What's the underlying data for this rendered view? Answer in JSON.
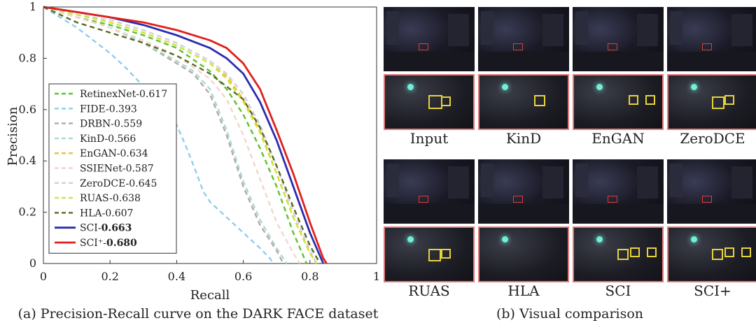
{
  "chart_data": {
    "type": "line",
    "title": "Precision-Recall curve on the DARK FACE dataset",
    "xlabel": "Recall",
    "ylabel": "Precision",
    "xlim": [
      0,
      1
    ],
    "ylim": [
      0,
      1
    ],
    "xticks": [
      "0",
      "0.2",
      "0.4",
      "0.6",
      "0.8",
      "1"
    ],
    "yticks": [
      "0",
      "0.2",
      "0.4",
      "0.6",
      "0.8",
      "1"
    ],
    "legend_position": "left-center",
    "series": [
      {
        "name": "RetinexNet",
        "score": "0.617",
        "color": "#5cc131",
        "dash": true,
        "bold": false,
        "points": [
          [
            0,
            1
          ],
          [
            0.1,
            0.96
          ],
          [
            0.2,
            0.93
          ],
          [
            0.3,
            0.89
          ],
          [
            0.4,
            0.84
          ],
          [
            0.5,
            0.75
          ],
          [
            0.55,
            0.68
          ],
          [
            0.6,
            0.58
          ],
          [
            0.65,
            0.45
          ],
          [
            0.7,
            0.3
          ],
          [
            0.75,
            0.12
          ],
          [
            0.79,
            0
          ]
        ]
      },
      {
        "name": "FIDE",
        "score": "0.393",
        "color": "#8fcdee",
        "dash": true,
        "bold": false,
        "points": [
          [
            0,
            1
          ],
          [
            0.05,
            0.96
          ],
          [
            0.1,
            0.92
          ],
          [
            0.15,
            0.87
          ],
          [
            0.2,
            0.82
          ],
          [
            0.25,
            0.76
          ],
          [
            0.3,
            0.69
          ],
          [
            0.35,
            0.62
          ],
          [
            0.4,
            0.54
          ],
          [
            0.43,
            0.45
          ],
          [
            0.46,
            0.35
          ],
          [
            0.48,
            0.28
          ],
          [
            0.5,
            0.24
          ],
          [
            0.55,
            0.18
          ],
          [
            0.6,
            0.12
          ],
          [
            0.65,
            0.06
          ],
          [
            0.68,
            0.02
          ],
          [
            0.69,
            0
          ]
        ]
      },
      {
        "name": "DRBN",
        "score": "0.559",
        "color": "#b6a99d",
        "dash": true,
        "bold": false,
        "points": [
          [
            0,
            1
          ],
          [
            0.1,
            0.96
          ],
          [
            0.2,
            0.92
          ],
          [
            0.3,
            0.86
          ],
          [
            0.4,
            0.78
          ],
          [
            0.45,
            0.74
          ],
          [
            0.5,
            0.66
          ],
          [
            0.55,
            0.5
          ],
          [
            0.6,
            0.3
          ],
          [
            0.65,
            0.15
          ],
          [
            0.7,
            0.05
          ],
          [
            0.72,
            0
          ]
        ]
      },
      {
        "name": "KinD",
        "score": "0.566",
        "color": "#a9d8d5",
        "dash": true,
        "bold": false,
        "points": [
          [
            0,
            1
          ],
          [
            0.1,
            0.96
          ],
          [
            0.2,
            0.92
          ],
          [
            0.3,
            0.86
          ],
          [
            0.4,
            0.79
          ],
          [
            0.45,
            0.75
          ],
          [
            0.5,
            0.68
          ],
          [
            0.55,
            0.52
          ],
          [
            0.6,
            0.32
          ],
          [
            0.65,
            0.17
          ],
          [
            0.7,
            0.06
          ],
          [
            0.73,
            0
          ]
        ]
      },
      {
        "name": "EnGAN",
        "score": "0.634",
        "color": "#f0c030",
        "dash": true,
        "bold": false,
        "points": [
          [
            0,
            1
          ],
          [
            0.1,
            0.97
          ],
          [
            0.2,
            0.94
          ],
          [
            0.3,
            0.9
          ],
          [
            0.4,
            0.85
          ],
          [
            0.5,
            0.78
          ],
          [
            0.55,
            0.73
          ],
          [
            0.6,
            0.64
          ],
          [
            0.65,
            0.52
          ],
          [
            0.7,
            0.35
          ],
          [
            0.75,
            0.18
          ],
          [
            0.8,
            0.04
          ],
          [
            0.82,
            0
          ]
        ]
      },
      {
        "name": "SSIENet",
        "score": "0.587",
        "color": "#f2d6cc",
        "dash": true,
        "bold": false,
        "points": [
          [
            0,
            1
          ],
          [
            0.1,
            0.96
          ],
          [
            0.2,
            0.92
          ],
          [
            0.3,
            0.87
          ],
          [
            0.4,
            0.81
          ],
          [
            0.5,
            0.72
          ],
          [
            0.55,
            0.64
          ],
          [
            0.6,
            0.5
          ],
          [
            0.65,
            0.33
          ],
          [
            0.7,
            0.16
          ],
          [
            0.75,
            0.04
          ],
          [
            0.77,
            0
          ]
        ]
      },
      {
        "name": "ZeroDCE",
        "score": "0.645",
        "color": "#cfcfe6",
        "dash": true,
        "bold": false,
        "points": [
          [
            0,
            1
          ],
          [
            0.1,
            0.97
          ],
          [
            0.2,
            0.95
          ],
          [
            0.3,
            0.91
          ],
          [
            0.4,
            0.86
          ],
          [
            0.5,
            0.79
          ],
          [
            0.55,
            0.74
          ],
          [
            0.6,
            0.66
          ],
          [
            0.65,
            0.54
          ],
          [
            0.7,
            0.38
          ],
          [
            0.75,
            0.2
          ],
          [
            0.8,
            0.05
          ],
          [
            0.82,
            0
          ]
        ]
      },
      {
        "name": "RUAS",
        "score": "0.638",
        "color": "#cde63a",
        "dash": true,
        "bold": false,
        "points": [
          [
            0,
            1
          ],
          [
            0.1,
            0.97
          ],
          [
            0.2,
            0.94
          ],
          [
            0.3,
            0.9
          ],
          [
            0.4,
            0.85
          ],
          [
            0.5,
            0.78
          ],
          [
            0.55,
            0.72
          ],
          [
            0.6,
            0.63
          ],
          [
            0.65,
            0.51
          ],
          [
            0.7,
            0.35
          ],
          [
            0.75,
            0.18
          ],
          [
            0.8,
            0.04
          ],
          [
            0.82,
            0
          ]
        ]
      },
      {
        "name": "HLA",
        "score": "0.607",
        "color": "#5a6a22",
        "dash": true,
        "bold": false,
        "points": [
          [
            0,
            1
          ],
          [
            0.05,
            0.97
          ],
          [
            0.1,
            0.94
          ],
          [
            0.2,
            0.9
          ],
          [
            0.3,
            0.86
          ],
          [
            0.4,
            0.81
          ],
          [
            0.5,
            0.74
          ],
          [
            0.6,
            0.64
          ],
          [
            0.65,
            0.53
          ],
          [
            0.7,
            0.38
          ],
          [
            0.75,
            0.22
          ],
          [
            0.8,
            0.07
          ],
          [
            0.83,
            0
          ]
        ]
      },
      {
        "name": "SCI",
        "score": "0.663",
        "color": "#2b2bb0",
        "dash": false,
        "bold": true,
        "points": [
          [
            0,
            1
          ],
          [
            0.1,
            0.98
          ],
          [
            0.2,
            0.96
          ],
          [
            0.3,
            0.93
          ],
          [
            0.4,
            0.89
          ],
          [
            0.5,
            0.84
          ],
          [
            0.55,
            0.8
          ],
          [
            0.6,
            0.74
          ],
          [
            0.65,
            0.63
          ],
          [
            0.7,
            0.48
          ],
          [
            0.75,
            0.3
          ],
          [
            0.8,
            0.12
          ],
          [
            0.84,
            0
          ]
        ]
      },
      {
        "name": "SCI⁺",
        "score": "0.680",
        "color": "#e0201c",
        "dash": false,
        "bold": true,
        "points": [
          [
            0,
            1
          ],
          [
            0.1,
            0.98
          ],
          [
            0.2,
            0.96
          ],
          [
            0.3,
            0.94
          ],
          [
            0.4,
            0.91
          ],
          [
            0.5,
            0.87
          ],
          [
            0.55,
            0.84
          ],
          [
            0.6,
            0.78
          ],
          [
            0.65,
            0.68
          ],
          [
            0.7,
            0.52
          ],
          [
            0.75,
            0.35
          ],
          [
            0.8,
            0.16
          ],
          [
            0.84,
            0.02
          ],
          [
            0.85,
            0
          ]
        ]
      }
    ]
  },
  "caption_left": "(a) Precision-Recall curve on the DARK FACE dataset",
  "caption_right": "(b) Visual comparison",
  "visual": {
    "row1": [
      "Input",
      "KinD",
      "EnGAN",
      "ZeroDCE"
    ],
    "row2": [
      "RUAS",
      "HLA",
      "SCI",
      "SCI+"
    ]
  },
  "colors": {
    "box_highlight": "#e8d23a",
    "region_marker": "#e23a3a",
    "crop_border": "#e07a7a"
  }
}
